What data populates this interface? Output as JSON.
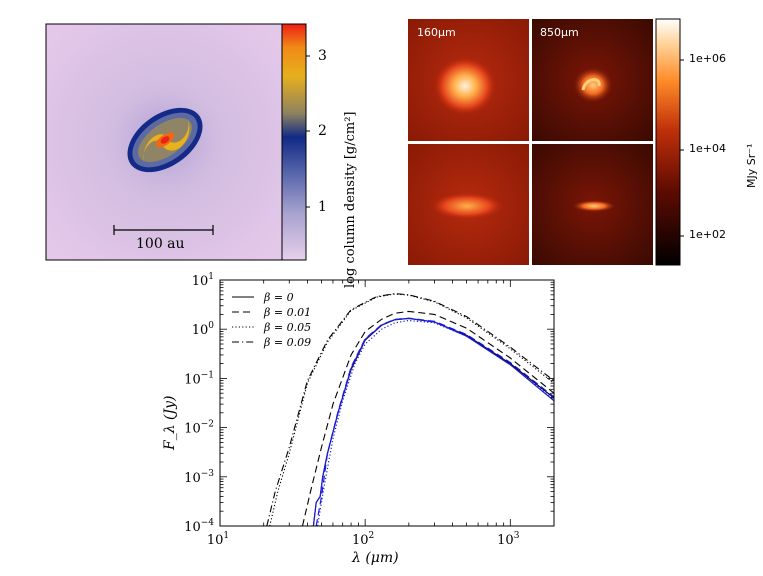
{
  "top_left": {
    "colorbar": {
      "label": "log column density [g/cm²]",
      "ticks": [
        "1",
        "2",
        "3"
      ]
    },
    "scalebar_label": "100 au"
  },
  "top_right": {
    "panel_labels": [
      "160μm",
      "850μm"
    ],
    "colorbar": {
      "label": "MJy Sr⁻¹",
      "ticks": [
        "1e+06",
        "1e+04",
        "1e+02"
      ]
    }
  },
  "chart_data": {
    "type": "line",
    "xlabel": "λ (μm)",
    "ylabel": "F_λ (Jy)",
    "x_scale": "log",
    "y_scale": "log",
    "xlim": [
      10,
      2000
    ],
    "ylim": [
      0.0001,
      10
    ],
    "x_ticks": [
      {
        "value": 10,
        "base": "10",
        "exp": "1"
      },
      {
        "value": 100,
        "base": "10",
        "exp": "2"
      },
      {
        "value": 1000,
        "base": "10",
        "exp": "3"
      }
    ],
    "y_ticks": [
      {
        "value": 0.0001,
        "base": "10",
        "exp": "−4"
      },
      {
        "value": 0.001,
        "base": "10",
        "exp": "−3"
      },
      {
        "value": 0.01,
        "base": "10",
        "exp": "−2"
      },
      {
        "value": 0.1,
        "base": "10",
        "exp": "−1"
      },
      {
        "value": 1,
        "base": "10",
        "exp": "0"
      },
      {
        "value": 10,
        "base": "10",
        "exp": "1"
      }
    ],
    "legend_position": "top-left",
    "series": [
      {
        "name": "β = 0",
        "style": "solid",
        "color": "#000000",
        "points": [
          [
            44,
            0.0001
          ],
          [
            46,
            0.0003
          ],
          [
            49,
            0.0004
          ],
          [
            51,
            0.001
          ],
          [
            55,
            0.003
          ],
          [
            65,
            0.02
          ],
          [
            80,
            0.15
          ],
          [
            100,
            0.6
          ],
          [
            130,
            1.2
          ],
          [
            160,
            1.55
          ],
          [
            200,
            1.65
          ],
          [
            300,
            1.4
          ],
          [
            500,
            0.75
          ],
          [
            1000,
            0.2
          ],
          [
            2000,
            0.04
          ]
        ]
      },
      {
        "name": "β = 0.01",
        "style": "dashed",
        "color": "#000000",
        "points": [
          [
            37,
            0.0001
          ],
          [
            42,
            0.0005
          ],
          [
            50,
            0.004
          ],
          [
            60,
            0.03
          ],
          [
            80,
            0.3
          ],
          [
            100,
            0.9
          ],
          [
            130,
            1.6
          ],
          [
            160,
            2.1
          ],
          [
            200,
            2.3
          ],
          [
            300,
            2.0
          ],
          [
            500,
            1.05
          ],
          [
            1000,
            0.26
          ],
          [
            2000,
            0.05
          ]
        ]
      },
      {
        "name": "β = 0.05",
        "style": "dotted",
        "color": "#000000",
        "points": [
          [
            22,
            0.0001
          ],
          [
            25,
            0.0005
          ],
          [
            30,
            0.003
          ],
          [
            40,
            0.08
          ],
          [
            55,
            0.55
          ],
          [
            80,
            2.4
          ],
          [
            120,
            4.5
          ],
          [
            160,
            5.2
          ],
          [
            200,
            4.9
          ],
          [
            300,
            3.6
          ],
          [
            500,
            1.7
          ],
          [
            1000,
            0.4
          ],
          [
            2000,
            0.08
          ]
        ]
      },
      {
        "name": "β = 0.09",
        "style": "dashdot",
        "color": "#000000",
        "points": [
          [
            21,
            0.0001
          ],
          [
            24,
            0.0005
          ],
          [
            30,
            0.004
          ],
          [
            40,
            0.09
          ],
          [
            55,
            0.6
          ],
          [
            80,
            2.5
          ],
          [
            120,
            4.6
          ],
          [
            160,
            5.3
          ],
          [
            200,
            5.0
          ],
          [
            300,
            3.7
          ],
          [
            500,
            1.8
          ],
          [
            1000,
            0.43
          ],
          [
            2000,
            0.09
          ]
        ]
      },
      {
        "style": "solid",
        "color": "#1a1adb",
        "points": [
          [
            44,
            0.0001
          ],
          [
            46,
            0.0003
          ],
          [
            49,
            0.0004
          ],
          [
            51,
            0.001
          ],
          [
            55,
            0.003
          ],
          [
            65,
            0.02
          ],
          [
            80,
            0.16
          ],
          [
            100,
            0.62
          ],
          [
            130,
            1.22
          ],
          [
            160,
            1.57
          ],
          [
            200,
            1.66
          ],
          [
            300,
            1.4
          ],
          [
            500,
            0.72
          ],
          [
            1000,
            0.19
          ],
          [
            2000,
            0.035
          ]
        ]
      },
      {
        "style": "dashed",
        "color": "#1a1adb",
        "points": [
          [
            46,
            0.0001
          ],
          [
            50,
            0.0004
          ],
          [
            55,
            0.003
          ],
          [
            65,
            0.021
          ],
          [
            80,
            0.17
          ],
          [
            100,
            0.64
          ],
          [
            130,
            1.24
          ],
          [
            160,
            1.58
          ],
          [
            200,
            1.67
          ],
          [
            300,
            1.45
          ],
          [
            500,
            0.78
          ],
          [
            1000,
            0.21
          ],
          [
            2000,
            0.042
          ]
        ]
      },
      {
        "style": "dotted",
        "color": "#1a1adb",
        "points": [
          [
            47,
            0.0001
          ],
          [
            52,
            0.0006
          ],
          [
            60,
            0.006
          ],
          [
            70,
            0.035
          ],
          [
            85,
            0.2
          ],
          [
            100,
            0.5
          ],
          [
            130,
            1.0
          ],
          [
            160,
            1.35
          ],
          [
            200,
            1.5
          ],
          [
            300,
            1.35
          ],
          [
            500,
            0.72
          ],
          [
            1000,
            0.19
          ],
          [
            2000,
            0.038
          ]
        ]
      }
    ]
  }
}
